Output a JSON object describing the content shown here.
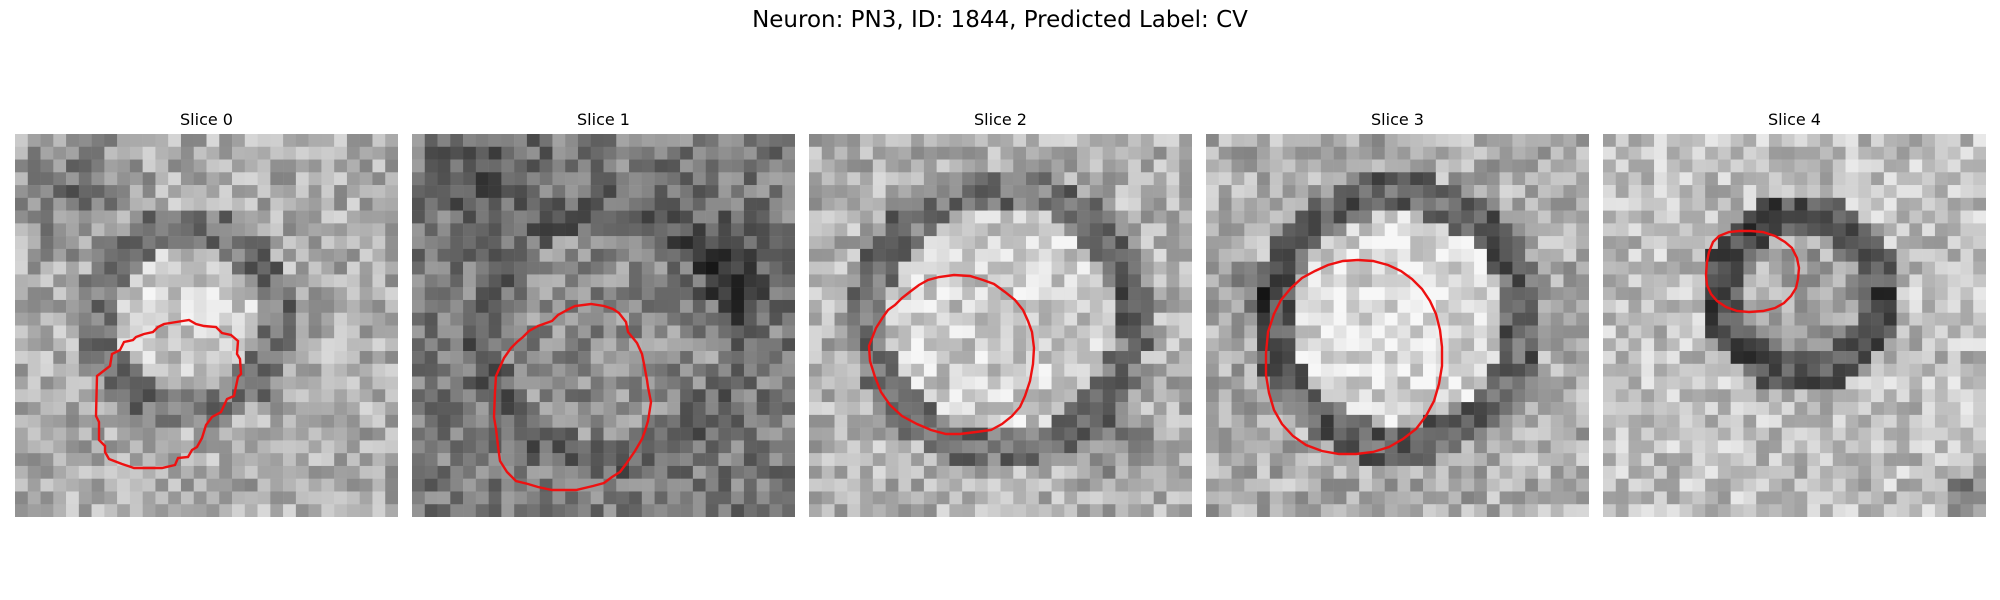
{
  "figure": {
    "title": "Neuron: PN3, ID: 1844, Predicted Label: CV"
  },
  "panels": [
    {
      "title": "Slice 0"
    },
    {
      "title": "Slice 1"
    },
    {
      "title": "Slice 2"
    },
    {
      "title": "Slice 3"
    },
    {
      "title": "Slice 4"
    }
  ],
  "colors": {
    "contour": "#ee1111",
    "background": "#ffffff"
  }
}
